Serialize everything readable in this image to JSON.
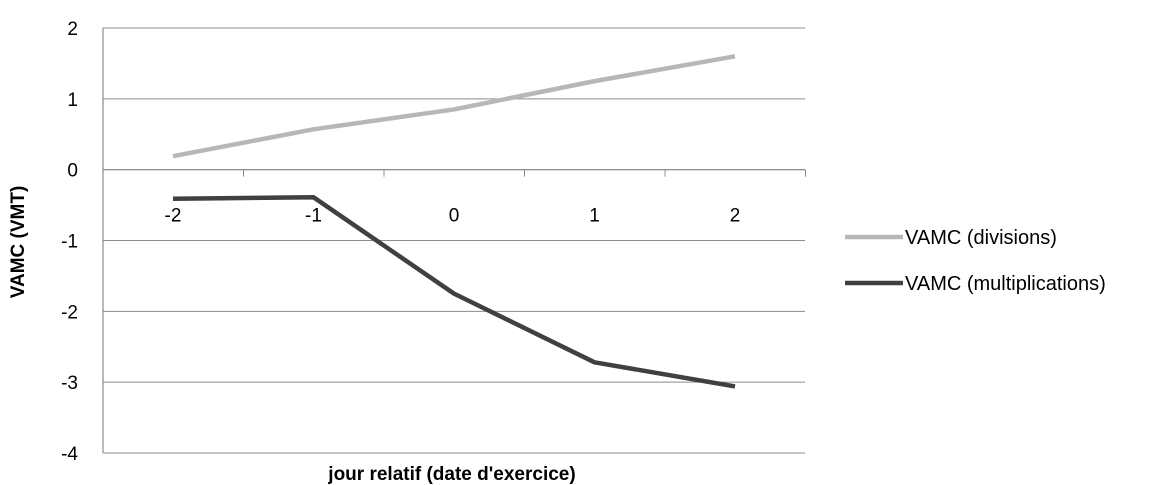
{
  "chart_data": {
    "type": "line",
    "title": "",
    "xlabel": "jour relatif (date d'exercice)",
    "ylabel": "VAMC (VMT)",
    "categories": [
      "-2",
      "-1",
      "0",
      "1",
      "2"
    ],
    "x": [
      -2,
      -1,
      0,
      1,
      2
    ],
    "ylim": [
      -4,
      2
    ],
    "yticks": [
      2,
      1,
      0,
      -1,
      -2,
      -3,
      -4
    ],
    "grid": true,
    "legend_position": "right",
    "series": [
      {
        "name": "VAMC (divisions)",
        "color": "#b7b7b7",
        "values": [
          0.19,
          0.57,
          0.85,
          1.25,
          1.6
        ]
      },
      {
        "name": "VAMC (multiplications)",
        "color": "#404040",
        "values": [
          -0.41,
          -0.39,
          -1.75,
          -2.72,
          -3.06
        ]
      }
    ]
  }
}
